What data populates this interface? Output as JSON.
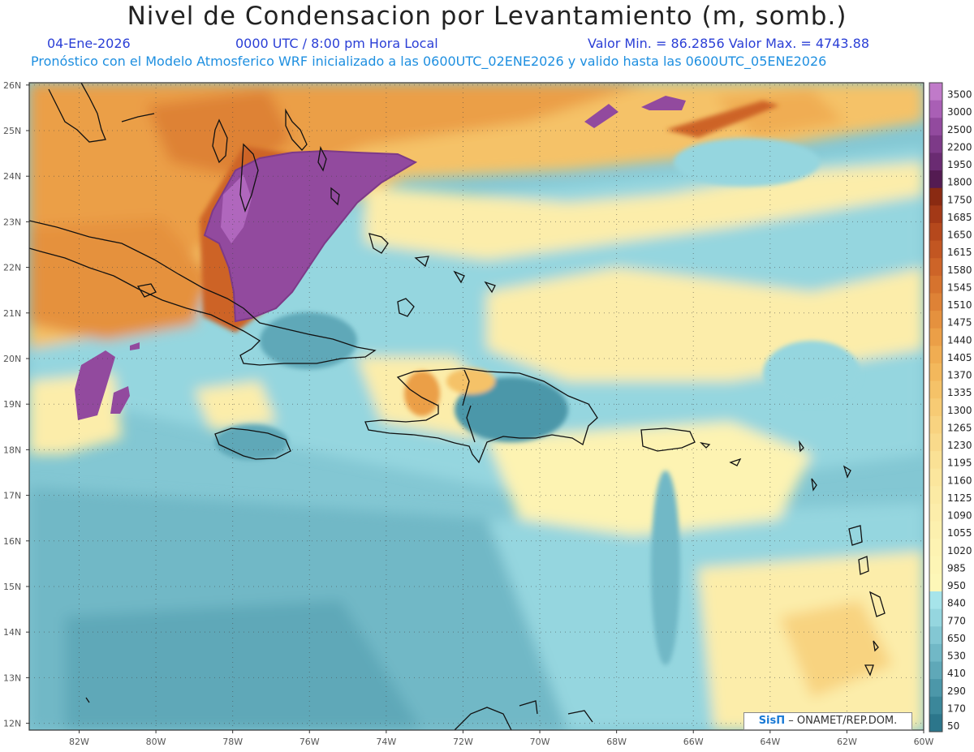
{
  "title": "Nivel de Condensacion por Levantamiento (m, somb.)",
  "date": "04-Ene-2026",
  "time": "0000 UTC / 8:00 pm Hora Local",
  "minmax": "Valor Min. = 86.2856   Valor Max. = 4743.88",
  "model_info": "Pronóstico con el Modelo Atmosferico WRF inicializado a las 0600UTC_02ENE2026 y valido hasta las  0600UTC_05ENE2026",
  "credit_logo": "SisΠ",
  "credit_text": "– ONAMET/REP.DOM.",
  "lat_labels": [
    "26N",
    "25N",
    "24N",
    "23N",
    "22N",
    "21N",
    "20N",
    "19N",
    "18N",
    "17N",
    "16N",
    "15N",
    "14N",
    "13N",
    "12N"
  ],
  "lon_labels": [
    "82W",
    "80W",
    "78W",
    "76W",
    "74W",
    "72W",
    "70W",
    "68W",
    "66W",
    "64W",
    "62W",
    "60W"
  ],
  "colorbar": [
    {
      "label": "3500",
      "color": "#c07ac9"
    },
    {
      "label": "3000",
      "color": "#a95fb5"
    },
    {
      "label": "2500",
      "color": "#924a9e"
    },
    {
      "label": "2200",
      "color": "#7d3a88"
    },
    {
      "label": "1950",
      "color": "#6a2b72"
    },
    {
      "label": "1800",
      "color": "#541b52"
    },
    {
      "label": "1750",
      "color": "#8a2a12"
    },
    {
      "label": "1685",
      "color": "#a33917"
    },
    {
      "label": "1650",
      "color": "#b5481c"
    },
    {
      "label": "1615",
      "color": "#c25622"
    },
    {
      "label": "1580",
      "color": "#cd6428"
    },
    {
      "label": "1545",
      "color": "#d6732e"
    },
    {
      "label": "1510",
      "color": "#de8236"
    },
    {
      "label": "1475",
      "color": "#e5913e"
    },
    {
      "label": "1440",
      "color": "#eb9f47"
    },
    {
      "label": "1405",
      "color": "#f0ad52"
    },
    {
      "label": "1370",
      "color": "#f3b85c"
    },
    {
      "label": "1335",
      "color": "#f5c268"
    },
    {
      "label": "1300",
      "color": "#f7cb74"
    },
    {
      "label": "1265",
      "color": "#f8d380"
    },
    {
      "label": "1230",
      "color": "#f9da8b"
    },
    {
      "label": "1195",
      "color": "#fae195"
    },
    {
      "label": "1160",
      "color": "#fbe69d"
    },
    {
      "label": "1125",
      "color": "#fbeaa4"
    },
    {
      "label": "1090",
      "color": "#fcedaa"
    },
    {
      "label": "1055",
      "color": "#fcf0ae"
    },
    {
      "label": "1020",
      "color": "#fdf3b2"
    },
    {
      "label": "985",
      "color": "#fdf5b5"
    },
    {
      "label": "950",
      "color": "#fdf7b8"
    },
    {
      "label": "840",
      "color": "#a6e4ea"
    },
    {
      "label": "770",
      "color": "#95d6df"
    },
    {
      "label": "650",
      "color": "#83c7d3"
    },
    {
      "label": "530",
      "color": "#71b8c6"
    },
    {
      "label": "410",
      "color": "#5fa8b8"
    },
    {
      "label": "290",
      "color": "#4c97a9"
    },
    {
      "label": "170",
      "color": "#3b879a"
    },
    {
      "label": "50",
      "color": "#2c768b"
    }
  ]
}
